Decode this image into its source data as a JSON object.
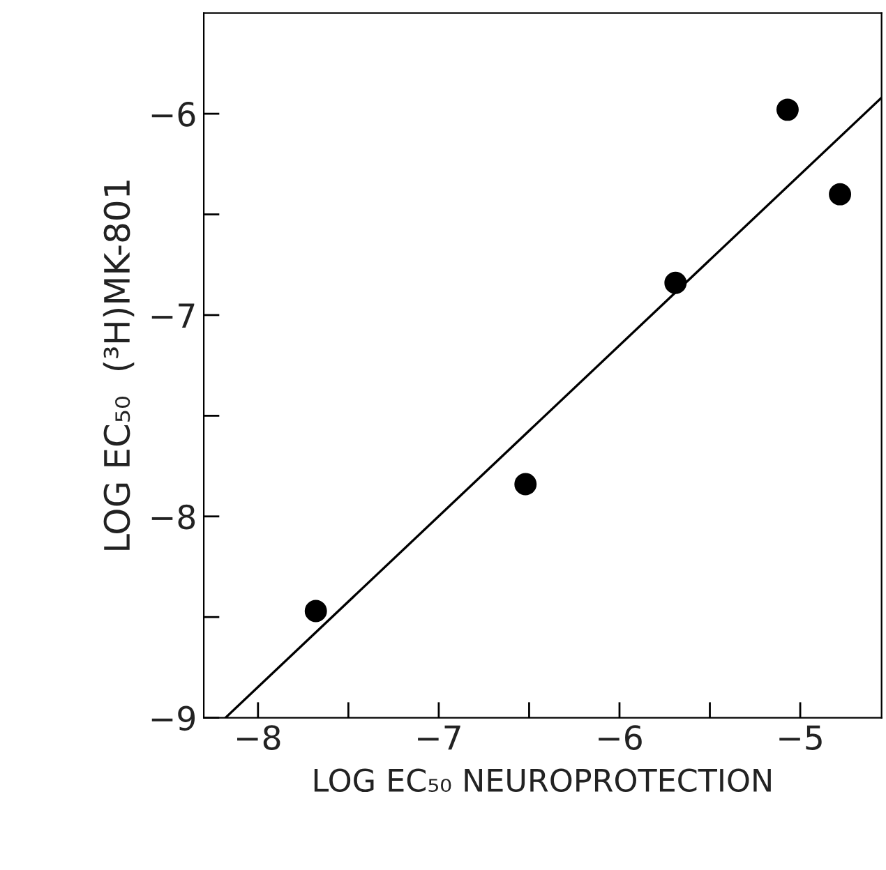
{
  "chart_data": {
    "type": "scatter",
    "xlabel": "LOG EC₅₀ NEUROPROTECTION",
    "ylabel": "LOG EC₅₀  (³H)MK-801",
    "x": [
      -7.68,
      -6.52,
      -5.69,
      -5.07,
      -4.78
    ],
    "series": [
      {
        "color": "#000000",
        "marker": "circle",
        "values": [
          -8.47,
          -7.84,
          -6.84,
          -5.98,
          -6.4
        ]
      },
      {
        "type": "line",
        "color": "#000000",
        "marker": "none",
        "line_style": "solid",
        "x": [
          -8.18,
          -4.55
        ],
        "values": [
          -9,
          -5.92
        ]
      }
    ],
    "xlim": [
      -8.3,
      -4.55
    ],
    "ylim": [
      -9,
      -5.5
    ],
    "xticks": [
      -8,
      {
        "value": -7.5,
        "label": null
      },
      -7,
      {
        "value": -6.5,
        "label": null
      },
      -6,
      {
        "value": -5.5,
        "label": null
      },
      -5
    ],
    "yticks": [
      -9,
      {
        "value": -8.5,
        "label": null
      },
      -8,
      {
        "value": -7.5,
        "label": null
      },
      -7,
      {
        "value": -6.5,
        "label": null
      },
      -6
    ],
    "grid": false,
    "legend": false
  }
}
